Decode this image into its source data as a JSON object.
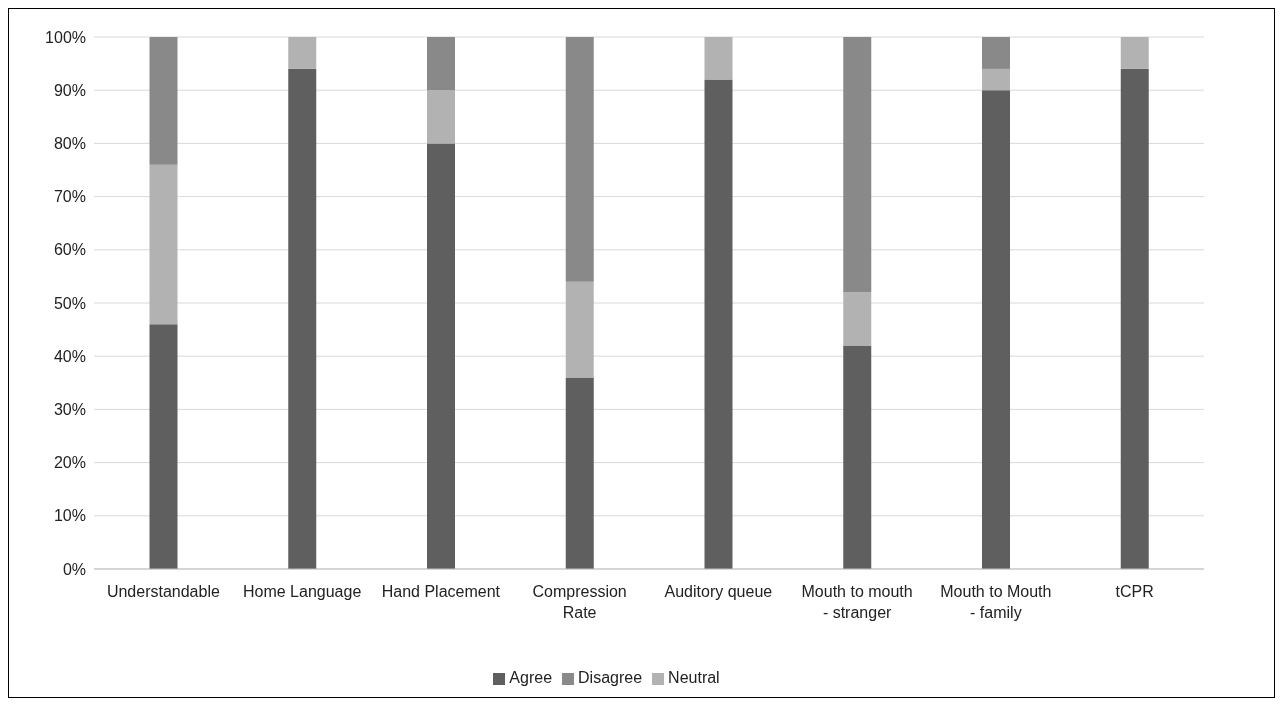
{
  "chart_data": {
    "type": "bar",
    "stacked": true,
    "categories": [
      "Understandable",
      "Home Language",
      "Hand Placement",
      "Compression Rate",
      "Auditory queue",
      "Mouth to mouth - stranger",
      "Mouth to Mouth - family",
      "tCPR"
    ],
    "series": [
      {
        "name": "Agree",
        "color": "#5f5f5f",
        "values": [
          46,
          94,
          80,
          36,
          92,
          42,
          90,
          94
        ]
      },
      {
        "name": "Neutral",
        "color": "#b2b2b2",
        "values": [
          30,
          6,
          10,
          18,
          8,
          10,
          4,
          6
        ]
      },
      {
        "name": "Disagree",
        "color": "#898989",
        "values": [
          24,
          0,
          10,
          46,
          0,
          48,
          6,
          0
        ]
      }
    ],
    "ylim": [
      0,
      100
    ],
    "yticks": [
      {
        "value": 0,
        "label": "0%"
      },
      {
        "value": 10,
        "label": "10%"
      },
      {
        "value": 20,
        "label": "20%"
      },
      {
        "value": 30,
        "label": "30%"
      },
      {
        "value": 40,
        "label": "40%"
      },
      {
        "value": 50,
        "label": "50%"
      },
      {
        "value": 60,
        "label": "60%"
      },
      {
        "value": 70,
        "label": "70%"
      },
      {
        "value": 80,
        "label": "80%"
      },
      {
        "value": 90,
        "label": "90%"
      },
      {
        "value": 100,
        "label": "100%"
      }
    ],
    "grid": "y",
    "legend": "bottom"
  }
}
